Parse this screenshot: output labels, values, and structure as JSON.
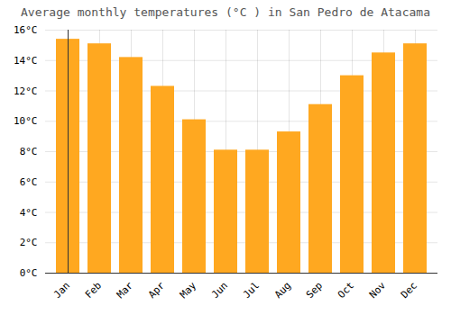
{
  "chart_data": {
    "type": "bar",
    "title": "Average monthly temperatures (°C ) in San Pedro de Atacama",
    "categories": [
      "Jan",
      "Feb",
      "Mar",
      "Apr",
      "May",
      "Jun",
      "Jul",
      "Aug",
      "Sep",
      "Oct",
      "Nov",
      "Dec"
    ],
    "values": [
      15.4,
      15.1,
      14.2,
      12.3,
      10.1,
      8.1,
      8.1,
      9.3,
      11.1,
      13.0,
      14.5,
      15.1
    ],
    "color": "#FFA820",
    "ylim": [
      0,
      16
    ],
    "yticks": [
      {
        "value": 0,
        "label": "0°C"
      },
      {
        "value": 2,
        "label": "2°C"
      },
      {
        "value": 4,
        "label": "4°C"
      },
      {
        "value": 6,
        "label": "6°C"
      },
      {
        "value": 8,
        "label": "8°C"
      },
      {
        "value": 10,
        "label": "10°C"
      },
      {
        "value": 12,
        "label": "12°C"
      },
      {
        "value": 14,
        "label": "14°C"
      },
      {
        "value": 16,
        "label": "16°C"
      }
    ],
    "grid": true
  }
}
